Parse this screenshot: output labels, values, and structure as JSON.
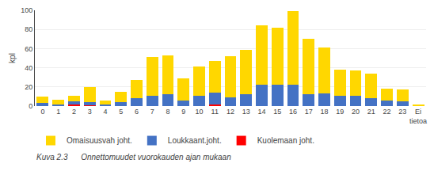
{
  "chart_data": {
    "type": "bar",
    "stacked": true,
    "categories": [
      "0",
      "1",
      "2",
      "3",
      "4",
      "5",
      "6",
      "7",
      "8",
      "9",
      "10",
      "11",
      "12",
      "13",
      "14",
      "15",
      "16",
      "17",
      "18",
      "19",
      "20",
      "21",
      "22",
      "23",
      "Ei\ntietoa"
    ],
    "series": [
      {
        "name": "Kuolemaan joht.",
        "color": "#FF0000",
        "values": [
          0,
          0,
          2,
          1,
          0,
          0,
          0,
          0,
          0,
          0,
          0,
          2,
          0,
          0,
          0,
          0,
          0,
          0,
          0,
          0,
          0,
          0,
          0,
          0,
          0
        ]
      },
      {
        "name": "Loukkaant.joht.",
        "color": "#4472C4",
        "values": [
          3,
          2,
          3,
          3,
          2,
          4,
          8,
          11,
          12,
          6,
          11,
          12,
          9,
          12,
          22,
          22,
          22,
          12,
          13,
          11,
          11,
          8,
          6,
          5,
          0
        ]
      },
      {
        "name": "Omaisuusvah joht.",
        "color": "#FFD700",
        "values": [
          7,
          5,
          6,
          16,
          4,
          11,
          19,
          40,
          41,
          23,
          30,
          33,
          43,
          47,
          62,
          60,
          77,
          58,
          48,
          27,
          26,
          26,
          12,
          12,
          1
        ]
      }
    ],
    "y_label": "kpl",
    "ylim": [
      0,
      100
    ],
    "yticks": [
      0,
      20,
      40,
      60,
      80,
      100
    ],
    "grid": true,
    "legend": "bottom",
    "caption": "Kuva 2.3      Onnettomuudet vuorokauden ajan mukaan"
  }
}
